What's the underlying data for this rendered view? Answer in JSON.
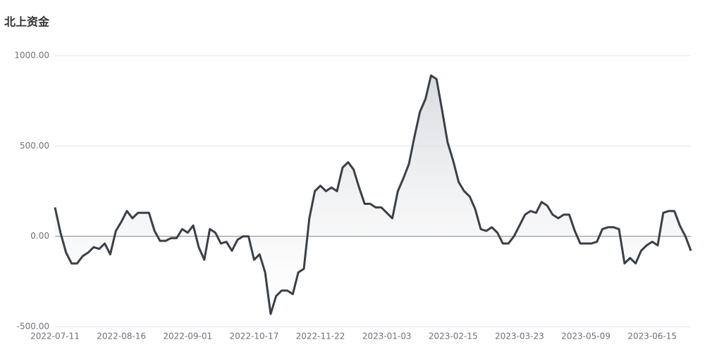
{
  "chart_data": {
    "type": "line",
    "title": "北上资金",
    "categories": [
      "2022-07-11",
      null,
      null,
      null,
      null,
      null,
      null,
      null,
      null,
      null,
      null,
      null,
      "2022-08-16",
      null,
      null,
      null,
      null,
      null,
      null,
      null,
      null,
      null,
      null,
      null,
      "2022-09-01",
      null,
      null,
      null,
      null,
      null,
      null,
      null,
      null,
      null,
      null,
      null,
      "2022-10-17",
      null,
      null,
      null,
      null,
      null,
      null,
      null,
      null,
      null,
      null,
      null,
      "2022-11-22",
      null,
      null,
      null,
      null,
      null,
      null,
      null,
      null,
      null,
      null,
      null,
      "2023-01-03",
      null,
      null,
      null,
      null,
      null,
      null,
      null,
      null,
      null,
      null,
      null,
      "2023-02-15",
      null,
      null,
      null,
      null,
      null,
      null,
      null,
      null,
      null,
      null,
      null,
      "2023-03-23",
      null,
      null,
      null,
      null,
      null,
      null,
      null,
      null,
      null,
      null,
      null,
      "2023-05-09",
      null,
      null,
      null,
      null,
      null,
      null,
      null,
      null,
      null,
      null,
      null,
      "2023-06-15",
      null,
      null,
      null,
      null,
      null,
      null,
      null
    ],
    "values": [
      160,
      20,
      -90,
      -150,
      -150,
      -110,
      -90,
      -60,
      -70,
      -40,
      -100,
      30,
      80,
      140,
      100,
      130,
      130,
      130,
      30,
      -25,
      -25,
      -10,
      -10,
      40,
      20,
      60,
      -60,
      -130,
      40,
      20,
      -40,
      -30,
      -80,
      -20,
      0,
      0,
      -130,
      -100,
      -200,
      -430,
      -330,
      -300,
      -300,
      -320,
      -200,
      -180,
      100,
      250,
      280,
      250,
      270,
      250,
      380,
      410,
      370,
      270,
      180,
      180,
      160,
      160,
      130,
      100,
      250,
      320,
      400,
      550,
      690,
      760,
      890,
      870,
      700,
      520,
      420,
      300,
      250,
      220,
      150,
      40,
      30,
      50,
      20,
      -40,
      -40,
      0,
      60,
      120,
      140,
      130,
      190,
      170,
      120,
      100,
      120,
      120,
      30,
      -40,
      -40,
      -40,
      -30,
      40,
      50,
      50,
      40,
      -150,
      -120,
      -150,
      -80,
      -50,
      -30,
      -50,
      130,
      140,
      140,
      60,
      0,
      -80
    ],
    "color": "#3a4048",
    "ylim": [
      -500,
      1000
    ],
    "yticks": [
      {
        "value": -500,
        "label": "-500.00"
      },
      {
        "value": 0,
        "label": "0.00"
      },
      {
        "value": 500,
        "label": "500.00"
      },
      {
        "value": 1000,
        "label": "1000.00"
      }
    ],
    "grid": true
  }
}
